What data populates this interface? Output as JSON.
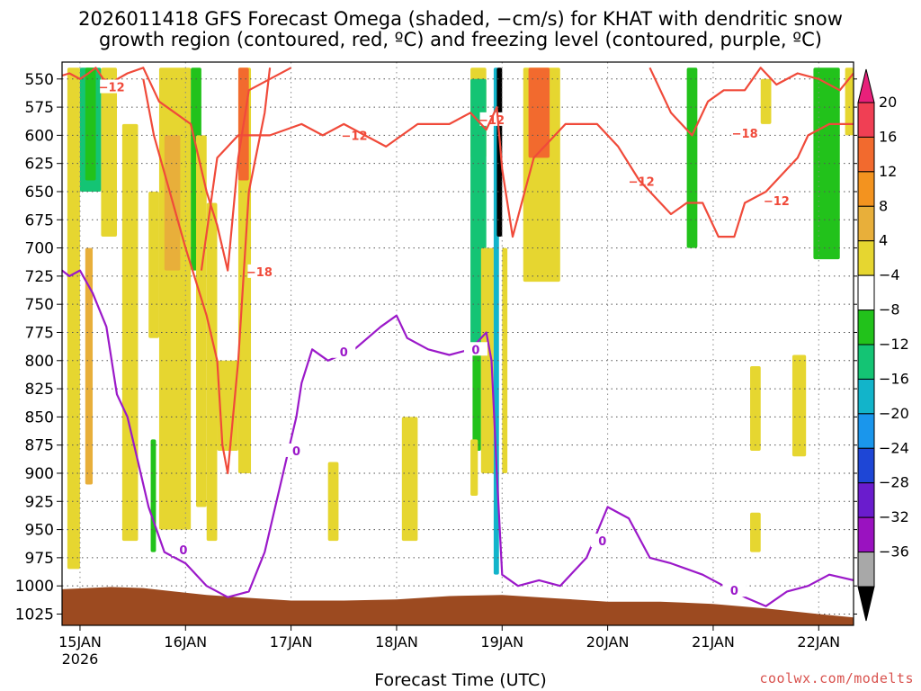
{
  "title": {
    "line1": "2026011418 GFS Forecast Omega (shaded, −cm/s) for KHAT with dendritic snow",
    "line2": "growth region (contoured, red, ºC) and freezing level (contoured, purple, ºC)"
  },
  "xlabel": "Forecast Time (UTC)",
  "credit": "coolwx.com/modelts",
  "colors": {
    "dgz_contour": "#f04a3a",
    "freezing_contour": "#9b19c9",
    "terrain": "#9c4a20",
    "grid": "#555555"
  },
  "chart_data": {
    "type": "heatmap",
    "title": "2026011418 GFS Forecast Omega (shaded, −cm/s) for KHAT with dendritic snow growth region (contoured, red, ºC) and freezing level (contoured, purple, ºC)",
    "xlabel": "Forecast Time (UTC)",
    "ylabel": "",
    "y_axis": {
      "unit": "hPa",
      "ticks": [
        550,
        575,
        600,
        625,
        650,
        675,
        700,
        725,
        750,
        775,
        800,
        825,
        850,
        875,
        900,
        925,
        950,
        975,
        1000,
        1025
      ],
      "range": [
        1035,
        535
      ],
      "direction": "increasing-downward"
    },
    "x_axis": {
      "unit": "days since 2026-01-15 00 UTC",
      "ticks": [
        "15JAN",
        "16JAN",
        "17JAN",
        "18JAN",
        "19JAN",
        "20JAN",
        "21JAN",
        "22JAN"
      ],
      "tick_sublabel": "2026",
      "range": [
        -0.17,
        7.33
      ]
    },
    "grid": true,
    "colorbar": {
      "labels": [
        "20",
        "16",
        "12",
        "8",
        "4",
        "−4",
        "−8",
        "−12",
        "−16",
        "−20",
        "−24",
        "−28",
        "−32",
        "−36"
      ],
      "colors": [
        "#f03f54",
        "#f26a2e",
        "#f3931f",
        "#e8af3a",
        "#e6d630",
        "#ffffff",
        "#22c21b",
        "#14c474",
        "#12b4ca",
        "#1a96ec",
        "#1e46d6",
        "#6a1ccd",
        "#9a12c0",
        "#a8a8a8"
      ],
      "over_color": "#e8207a",
      "under_color": "#000000"
    },
    "omega_regions": [
      {
        "x": [
          -0.12,
          0.0
        ],
        "p_top": 540,
        "p_bottom": 985,
        "color": "#e6d630"
      },
      {
        "x": [
          0.0,
          0.2
        ],
        "p_top": 540,
        "p_bottom": 650,
        "color": "#14c474"
      },
      {
        "x": [
          0.05,
          0.15
        ],
        "p_top": 540,
        "p_bottom": 640,
        "color": "#22c21b"
      },
      {
        "x": [
          0.05,
          0.12
        ],
        "p_top": 700,
        "p_bottom": 910,
        "color": "#e8af3a"
      },
      {
        "x": [
          0.2,
          0.35
        ],
        "p_top": 540,
        "p_bottom": 690,
        "color": "#e6d630"
      },
      {
        "x": [
          0.4,
          0.55
        ],
        "p_top": 590,
        "p_bottom": 960,
        "color": "#e6d630"
      },
      {
        "x": [
          0.65,
          0.75
        ],
        "p_top": 650,
        "p_bottom": 780,
        "color": "#e6d630"
      },
      {
        "x": [
          0.67,
          0.72
        ],
        "p_top": 870,
        "p_bottom": 970,
        "color": "#22c21b"
      },
      {
        "x": [
          0.75,
          1.05
        ],
        "p_top": 540,
        "p_bottom": 950,
        "color": "#e6d630"
      },
      {
        "x": [
          0.8,
          0.95
        ],
        "p_top": 600,
        "p_bottom": 720,
        "color": "#e8af3a"
      },
      {
        "x": [
          1.05,
          1.15
        ],
        "p_top": 540,
        "p_bottom": 720,
        "color": "#22c21b"
      },
      {
        "x": [
          1.1,
          1.2
        ],
        "p_top": 600,
        "p_bottom": 930,
        "color": "#e6d630"
      },
      {
        "x": [
          1.2,
          1.3
        ],
        "p_top": 660,
        "p_bottom": 960,
        "color": "#e6d630"
      },
      {
        "x": [
          1.5,
          1.62
        ],
        "p_top": 540,
        "p_bottom": 900,
        "color": "#e6d630"
      },
      {
        "x": [
          1.5,
          1.6
        ],
        "p_top": 540,
        "p_bottom": 640,
        "color": "#f26a2e"
      },
      {
        "x": [
          1.3,
          1.5
        ],
        "p_top": 800,
        "p_bottom": 880,
        "color": "#e6d630"
      },
      {
        "x": [
          3.7,
          3.85
        ],
        "p_top": 540,
        "p_bottom": 620,
        "color": "#e6d630"
      },
      {
        "x": [
          3.7,
          3.85
        ],
        "p_top": 550,
        "p_bottom": 790,
        "color": "#14c474"
      },
      {
        "x": [
          3.72,
          3.8
        ],
        "p_top": 790,
        "p_bottom": 880,
        "color": "#22c21b"
      },
      {
        "x": [
          3.8,
          3.92
        ],
        "p_top": 700,
        "p_bottom": 900,
        "color": "#e6d630"
      },
      {
        "x": [
          3.92,
          3.97
        ],
        "p_top": 540,
        "p_bottom": 990,
        "color": "#12b4ca"
      },
      {
        "x": [
          3.95,
          4.0
        ],
        "p_top": 540,
        "p_bottom": 690,
        "color": "#000000"
      },
      {
        "x": [
          4.0,
          4.05
        ],
        "p_top": 700,
        "p_bottom": 900,
        "color": "#e6d630"
      },
      {
        "x": [
          4.2,
          4.55
        ],
        "p_top": 540,
        "p_bottom": 730,
        "color": "#e6d630"
      },
      {
        "x": [
          4.25,
          4.45
        ],
        "p_top": 540,
        "p_bottom": 620,
        "color": "#f26a2e"
      },
      {
        "x": [
          3.05,
          3.2
        ],
        "p_top": 850,
        "p_bottom": 960,
        "color": "#e6d630"
      },
      {
        "x": [
          3.7,
          3.77
        ],
        "p_top": 870,
        "p_bottom": 920,
        "color": "#e6d630"
      },
      {
        "x": [
          2.35,
          2.45
        ],
        "p_top": 890,
        "p_bottom": 960,
        "color": "#e6d630"
      },
      {
        "x": [
          5.75,
          5.85
        ],
        "p_top": 540,
        "p_bottom": 700,
        "color": "#22c21b"
      },
      {
        "x": [
          6.45,
          6.55
        ],
        "p_top": 550,
        "p_bottom": 590,
        "color": "#e6d630"
      },
      {
        "x": [
          6.95,
          7.2
        ],
        "p_top": 540,
        "p_bottom": 710,
        "color": "#22c21b"
      },
      {
        "x": [
          7.25,
          7.33
        ],
        "p_top": 540,
        "p_bottom": 600,
        "color": "#e6d630"
      },
      {
        "x": [
          6.35,
          6.45
        ],
        "p_top": 805,
        "p_bottom": 880,
        "color": "#e6d630"
      },
      {
        "x": [
          6.75,
          6.88
        ],
        "p_top": 795,
        "p_bottom": 885,
        "color": "#e6d630"
      },
      {
        "x": [
          6.35,
          6.45
        ],
        "p_top": 935,
        "p_bottom": 970,
        "color": "#e6d630"
      }
    ],
    "dgz_contours": [
      {
        "label": "−12",
        "label_positions": [
          [
            0.3,
            557
          ],
          [
            2.6,
            600
          ],
          [
            3.9,
            586
          ],
          [
            5.32,
            641
          ],
          [
            6.6,
            658
          ]
        ],
        "points": [
          [
            -0.17,
            547
          ],
          [
            -0.1,
            545
          ],
          [
            0.0,
            550
          ],
          [
            0.08,
            545
          ],
          [
            0.15,
            540
          ],
          [
            0.22,
            550
          ],
          [
            0.3,
            553
          ],
          [
            0.45,
            545
          ],
          [
            0.6,
            540
          ],
          [
            0.75,
            570
          ],
          [
            0.9,
            580
          ],
          [
            1.05,
            590
          ],
          [
            1.2,
            650
          ],
          [
            1.3,
            680
          ],
          [
            1.4,
            720
          ],
          [
            1.5,
            620
          ],
          [
            1.6,
            560
          ],
          [
            1.8,
            550
          ],
          [
            2.0,
            540
          ]
        ]
      },
      {
        "label": "−12",
        "label_positions": [],
        "points": [
          [
            1.15,
            720
          ],
          [
            1.3,
            620
          ],
          [
            1.5,
            600
          ],
          [
            1.8,
            600
          ],
          [
            2.1,
            590
          ],
          [
            2.3,
            600
          ],
          [
            2.5,
            590
          ],
          [
            2.7,
            600
          ],
          [
            2.9,
            610
          ],
          [
            3.2,
            590
          ],
          [
            3.5,
            590
          ],
          [
            3.7,
            580
          ],
          [
            3.85,
            595
          ],
          [
            3.95,
            575
          ],
          [
            4.0,
            630
          ],
          [
            4.1,
            690
          ],
          [
            4.3,
            620
          ],
          [
            4.6,
            590
          ],
          [
            4.9,
            590
          ],
          [
            5.1,
            610
          ],
          [
            5.3,
            640
          ],
          [
            5.5,
            660
          ],
          [
            5.6,
            670
          ],
          [
            5.75,
            660
          ],
          [
            5.9,
            660
          ],
          [
            6.05,
            690
          ],
          [
            6.2,
            690
          ],
          [
            6.3,
            660
          ],
          [
            6.5,
            650
          ],
          [
            6.7,
            630
          ],
          [
            6.8,
            620
          ],
          [
            6.9,
            600
          ],
          [
            7.1,
            590
          ],
          [
            7.33,
            590
          ]
        ]
      },
      {
        "label": "−18",
        "label_positions": [
          [
            1.7,
            721
          ],
          [
            6.3,
            598
          ]
        ],
        "points": [
          [
            0.6,
            550
          ],
          [
            0.7,
            600
          ],
          [
            0.85,
            650
          ],
          [
            1.0,
            700
          ],
          [
            1.2,
            760
          ],
          [
            1.3,
            800
          ],
          [
            1.35,
            875
          ],
          [
            1.4,
            900
          ],
          [
            1.5,
            800
          ],
          [
            1.6,
            650
          ],
          [
            1.75,
            580
          ],
          [
            1.8,
            540
          ]
        ]
      },
      {
        "label": "−18",
        "label_positions": [],
        "points": [
          [
            5.4,
            540
          ],
          [
            5.6,
            580
          ],
          [
            5.8,
            600
          ],
          [
            5.95,
            570
          ],
          [
            6.1,
            560
          ],
          [
            6.3,
            560
          ],
          [
            6.45,
            540
          ],
          [
            6.6,
            555
          ],
          [
            6.8,
            545
          ],
          [
            7.0,
            550
          ],
          [
            7.2,
            560
          ],
          [
            7.33,
            545
          ]
        ]
      }
    ],
    "freezing_contour": {
      "label": "0",
      "label_positions": [
        [
          0.98,
          968
        ],
        [
          2.05,
          880
        ],
        [
          2.5,
          792
        ],
        [
          3.75,
          790
        ],
        [
          4.95,
          960
        ],
        [
          6.2,
          1004
        ]
      ],
      "points": [
        [
          -0.17,
          720
        ],
        [
          -0.1,
          725
        ],
        [
          0.0,
          720
        ],
        [
          0.12,
          740
        ],
        [
          0.25,
          770
        ],
        [
          0.35,
          830
        ],
        [
          0.45,
          850
        ],
        [
          0.55,
          890
        ],
        [
          0.65,
          930
        ],
        [
          0.8,
          970
        ],
        [
          1.0,
          980
        ],
        [
          1.2,
          1000
        ],
        [
          1.4,
          1010
        ],
        [
          1.6,
          1005
        ],
        [
          1.75,
          970
        ],
        [
          1.85,
          930
        ],
        [
          1.95,
          890
        ],
        [
          2.05,
          850
        ],
        [
          2.1,
          820
        ],
        [
          2.2,
          790
        ],
        [
          2.35,
          800
        ],
        [
          2.6,
          790
        ],
        [
          2.85,
          770
        ],
        [
          3.0,
          760
        ],
        [
          3.1,
          780
        ],
        [
          3.3,
          790
        ],
        [
          3.5,
          795
        ],
        [
          3.7,
          790
        ],
        [
          3.85,
          775
        ],
        [
          3.9,
          800
        ],
        [
          3.95,
          900
        ],
        [
          4.0,
          990
        ],
        [
          4.15,
          1000
        ],
        [
          4.35,
          995
        ],
        [
          4.55,
          1000
        ],
        [
          4.8,
          975
        ],
        [
          5.0,
          930
        ],
        [
          5.2,
          940
        ],
        [
          5.4,
          975
        ],
        [
          5.6,
          980
        ],
        [
          5.9,
          990
        ],
        [
          6.1,
          1000
        ],
        [
          6.3,
          1010
        ],
        [
          6.5,
          1018
        ],
        [
          6.7,
          1005
        ],
        [
          6.9,
          1000
        ],
        [
          7.1,
          990
        ],
        [
          7.33,
          995
        ]
      ]
    },
    "terrain": {
      "points": [
        [
          -0.17,
          1003
        ],
        [
          0.3,
          1001
        ],
        [
          0.6,
          1002
        ],
        [
          0.9,
          1005
        ],
        [
          1.2,
          1008
        ],
        [
          1.5,
          1010
        ],
        [
          2.0,
          1013
        ],
        [
          2.5,
          1013
        ],
        [
          3.0,
          1012
        ],
        [
          3.5,
          1009
        ],
        [
          4.0,
          1008
        ],
        [
          4.5,
          1011
        ],
        [
          5.0,
          1014
        ],
        [
          5.5,
          1014
        ],
        [
          6.0,
          1016
        ],
        [
          6.5,
          1020
        ],
        [
          7.0,
          1025
        ],
        [
          7.33,
          1028
        ]
      ]
    }
  }
}
